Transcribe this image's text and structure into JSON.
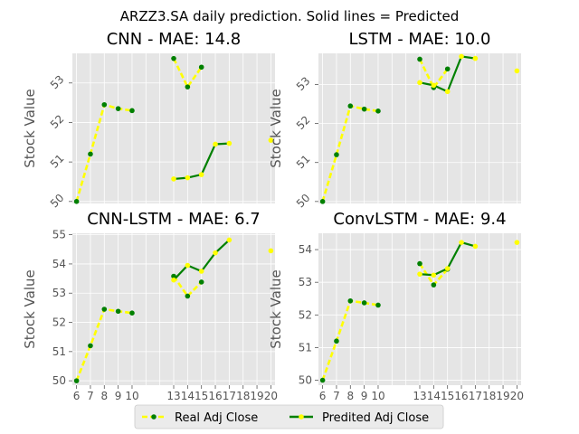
{
  "figure": {
    "suptitle": "ARZZ3.SA daily prediction. Solid lines = Predicted",
    "legend": {
      "placement": "bottom-center",
      "entries": [
        {
          "label": "Real Adj Close",
          "line_color": "#ffff00",
          "marker_color": "#008000"
        },
        {
          "label": "Predited Adj Close",
          "line_color": "#008000",
          "marker_color": "#ffff00"
        }
      ]
    },
    "colors": {
      "plot_bg": "#e5e5e5",
      "grid": "#ffffff",
      "real": "#ffff00",
      "predicted": "#008000",
      "tick_text": "#555555"
    }
  },
  "chart_data": [
    {
      "type": "line",
      "title": "CNN - MAE: 14.8",
      "xlabel": "",
      "ylabel": "Stock Value",
      "xlim": [
        5.7,
        20.3
      ],
      "ylim": [
        49.95,
        53.75
      ],
      "yticks": [
        50,
        51,
        52,
        53
      ],
      "show_xticks": false,
      "rotate_yticks": true,
      "grid": true,
      "series": [
        {
          "name": "Real Adj Close",
          "x": [
            6,
            7,
            8,
            9,
            10,
            11,
            12,
            13,
            14,
            15
          ],
          "y": [
            50.0,
            51.2,
            52.45,
            52.35,
            52.3,
            null,
            null,
            53.62,
            52.9,
            53.4
          ]
        },
        {
          "name": "Predited Adj Close",
          "x": [
            13,
            14,
            15,
            16,
            17,
            18,
            19,
            20
          ],
          "y": [
            50.57,
            50.6,
            50.68,
            51.45,
            51.47,
            null,
            null,
            51.55
          ]
        }
      ]
    },
    {
      "type": "line",
      "title": "LSTM - MAE: 10.0",
      "xlabel": "",
      "ylabel": "Stock Value",
      "xlim": [
        5.7,
        20.3
      ],
      "ylim": [
        49.95,
        53.8
      ],
      "yticks": [
        50,
        51,
        52,
        53
      ],
      "show_xticks": false,
      "rotate_yticks": true,
      "grid": true,
      "series": [
        {
          "name": "Real Adj Close",
          "x": [
            6,
            7,
            8,
            9,
            10,
            11,
            12,
            13,
            14,
            15
          ],
          "y": [
            50.0,
            51.2,
            52.45,
            52.37,
            52.32,
            null,
            null,
            53.65,
            52.92,
            53.4
          ]
        },
        {
          "name": "Predited Adj Close",
          "x": [
            13,
            14,
            15,
            16,
            17,
            18,
            19,
            20
          ],
          "y": [
            53.05,
            52.98,
            52.82,
            53.72,
            53.67,
            null,
            null,
            53.35
          ]
        }
      ]
    },
    {
      "type": "line",
      "title": "CNN-LSTM - MAE: 6.7",
      "xlabel": "",
      "ylabel": "Stock Value",
      "xlim": [
        5.7,
        20.3
      ],
      "ylim": [
        49.85,
        55.05
      ],
      "yticks": [
        50,
        51,
        52,
        53,
        54,
        55
      ],
      "xticks": [
        6,
        7,
        8,
        9,
        10,
        13,
        14,
        15,
        16,
        17,
        18,
        19,
        20
      ],
      "show_xticks": true,
      "rotate_yticks": false,
      "grid": true,
      "series": [
        {
          "name": "Real Adj Close",
          "x": [
            6,
            7,
            8,
            9,
            10,
            11,
            12,
            13,
            14,
            15
          ],
          "y": [
            50.0,
            51.2,
            52.45,
            52.38,
            52.32,
            null,
            null,
            53.58,
            52.9,
            53.38
          ]
        },
        {
          "name": "Predited Adj Close",
          "x": [
            13,
            14,
            15,
            16,
            17,
            18,
            19,
            20
          ],
          "y": [
            53.45,
            53.95,
            53.75,
            54.38,
            54.82,
            null,
            null,
            54.45
          ]
        }
      ]
    },
    {
      "type": "line",
      "title": "ConvLSTM - MAE: 9.4",
      "xlabel": "",
      "ylabel": "Stock Value",
      "xlim": [
        5.7,
        20.3
      ],
      "ylim": [
        49.85,
        54.5
      ],
      "yticks": [
        50,
        51,
        52,
        53,
        54
      ],
      "xticks": [
        6,
        7,
        8,
        9,
        10,
        13,
        14,
        15,
        16,
        17,
        18,
        19,
        20
      ],
      "show_xticks": true,
      "rotate_yticks": false,
      "grid": true,
      "series": [
        {
          "name": "Real Adj Close",
          "x": [
            6,
            7,
            8,
            9,
            10,
            11,
            12,
            13,
            14,
            15
          ],
          "y": [
            50.0,
            51.2,
            52.43,
            52.37,
            52.3,
            null,
            null,
            53.57,
            52.92,
            53.4
          ]
        },
        {
          "name": "Predited Adj Close",
          "x": [
            13,
            14,
            15,
            16,
            17,
            18,
            19,
            20
          ],
          "y": [
            53.25,
            53.22,
            53.42,
            54.22,
            54.1,
            null,
            null,
            54.22
          ]
        }
      ]
    }
  ]
}
